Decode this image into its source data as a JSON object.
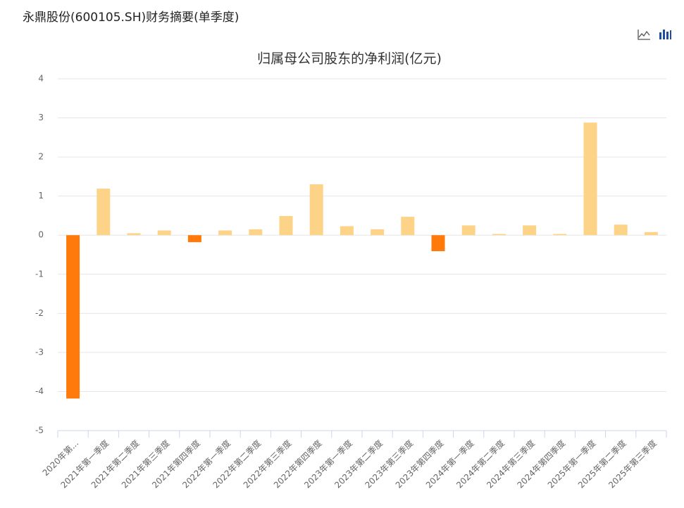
{
  "page_title": "永鼎股份(600105.SH)财务摘要(单季度)",
  "chart_data": {
    "type": "bar",
    "title": "归属母公司股东的净利润(亿元)",
    "categories": [
      "2020年第...",
      "2021年第一季度",
      "2021年第二季度",
      "2021年第三季度",
      "2021年第四季度",
      "2022年第一季度",
      "2022年第二季度",
      "2022年第三季度",
      "2022年第四季度",
      "2023年第一季度",
      "2023年第二季度",
      "2023年第三季度",
      "2023年第四季度",
      "2024年第一季度",
      "2024年第二季度",
      "2024年第三季度",
      "2024年第四季度",
      "2025年第一季度",
      "2025年第二季度",
      "2025年第三季度"
    ],
    "values": [
      -4.18,
      1.19,
      0.05,
      0.12,
      -0.18,
      0.12,
      0.15,
      0.49,
      1.3,
      0.23,
      0.15,
      0.47,
      -0.41,
      0.25,
      0.03,
      0.25,
      0.03,
      2.88,
      0.27,
      0.08
    ],
    "positive_color": "#fdd388",
    "negative_color": "#ff7a0a",
    "ylim": [
      -5,
      4
    ],
    "yticks": [
      -5,
      -4,
      -3,
      -2,
      -1,
      0,
      1,
      2,
      3,
      4
    ],
    "grid": true
  }
}
